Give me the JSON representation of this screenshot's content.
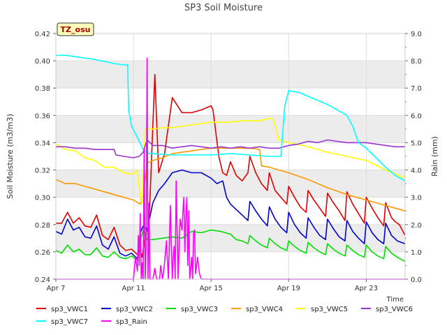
{
  "chart_data": {
    "type": "line",
    "title": "SP3 Soil Moisture",
    "xlabel": "Time",
    "ylabel": "Soil Moisture (m3/m3)",
    "y2label": "Rain (mm)",
    "station_badge": "TZ_osu",
    "xlim": [
      0,
      18
    ],
    "ylim": [
      0.24,
      0.42
    ],
    "y2lim": [
      0.0,
      9.0
    ],
    "x_ticks": [
      {
        "v": 0,
        "label": "Apr 7"
      },
      {
        "v": 4,
        "label": "Apr 11"
      },
      {
        "v": 8,
        "label": "Apr 15"
      },
      {
        "v": 12,
        "label": "Apr 19"
      },
      {
        "v": 16,
        "label": "Apr 23"
      }
    ],
    "y_ticks": [
      {
        "v": 0.24,
        "label": "0.24"
      },
      {
        "v": 0.26,
        "label": "0.26"
      },
      {
        "v": 0.28,
        "label": "0.28"
      },
      {
        "v": 0.3,
        "label": "0.30"
      },
      {
        "v": 0.32,
        "label": "0.32"
      },
      {
        "v": 0.34,
        "label": "0.34"
      },
      {
        "v": 0.36,
        "label": "0.36"
      },
      {
        "v": 0.38,
        "label": "0.38"
      },
      {
        "v": 0.4,
        "label": "0.40"
      },
      {
        "v": 0.42,
        "label": "0.42"
      }
    ],
    "y2_ticks": [
      {
        "v": 0.0,
        "label": "0.0"
      },
      {
        "v": 1.0,
        "label": "1.0"
      },
      {
        "v": 2.0,
        "label": "2.0"
      },
      {
        "v": 3.0,
        "label": "3.0"
      },
      {
        "v": 4.0,
        "label": "4.0"
      },
      {
        "v": 5.0,
        "label": "5.0"
      },
      {
        "v": 6.0,
        "label": "6.0"
      },
      {
        "v": 7.0,
        "label": "7.0"
      },
      {
        "v": 8.0,
        "label": "8.0"
      },
      {
        "v": 9.0,
        "label": "9.0"
      }
    ],
    "grid": true,
    "band_fill": "#ececec",
    "legend_position": "bottom",
    "series": [
      {
        "name": "sp3_VWC1",
        "color": "#dd0000",
        "axis": "left",
        "x": [
          0.0,
          0.3,
          0.6,
          0.9,
          1.2,
          1.5,
          1.8,
          2.1,
          2.4,
          2.7,
          3.0,
          3.3,
          3.6,
          3.9,
          4.2,
          4.35,
          4.45,
          4.6,
          4.8,
          5.1,
          5.3,
          5.6,
          6.0,
          6.5,
          7.0,
          7.5,
          8.0,
          8.1,
          8.4,
          8.6,
          8.8,
          9.0,
          9.3,
          9.6,
          9.9,
          10.0,
          10.3,
          10.6,
          10.9,
          11.0,
          11.3,
          11.6,
          11.9,
          12.0,
          12.3,
          12.6,
          12.9,
          13.0,
          13.3,
          13.6,
          13.9,
          14.0,
          14.3,
          14.6,
          14.9,
          15.0,
          15.3,
          15.6,
          15.9,
          16.0,
          16.3,
          16.6,
          16.9,
          17.0,
          17.3,
          17.5,
          17.7,
          18.0
        ],
        "y": [
          0.281,
          0.281,
          0.289,
          0.281,
          0.285,
          0.279,
          0.278,
          0.287,
          0.272,
          0.269,
          0.278,
          0.265,
          0.261,
          0.262,
          0.258,
          0.261,
          0.256,
          0.272,
          0.28,
          0.39,
          0.318,
          0.332,
          0.373,
          0.362,
          0.362,
          0.364,
          0.367,
          0.364,
          0.33,
          0.318,
          0.316,
          0.326,
          0.316,
          0.312,
          0.318,
          0.33,
          0.318,
          0.31,
          0.305,
          0.318,
          0.305,
          0.3,
          0.295,
          0.308,
          0.3,
          0.293,
          0.289,
          0.305,
          0.298,
          0.292,
          0.286,
          0.303,
          0.296,
          0.29,
          0.283,
          0.304,
          0.295,
          0.288,
          0.281,
          0.3,
          0.292,
          0.285,
          0.279,
          0.296,
          0.285,
          0.282,
          0.28,
          0.272
        ]
      },
      {
        "name": "sp3_VWC2",
        "color": "#0000cc",
        "axis": "left",
        "x": [
          0.0,
          0.3,
          0.6,
          0.9,
          1.2,
          1.5,
          1.8,
          2.1,
          2.4,
          2.7,
          3.0,
          3.3,
          3.6,
          3.9,
          4.2,
          4.35,
          4.5,
          4.7,
          5.0,
          5.3,
          5.6,
          6.0,
          6.5,
          7.0,
          7.5,
          8.0,
          8.3,
          8.6,
          8.8,
          9.0,
          9.3,
          9.6,
          9.9,
          10.0,
          10.3,
          10.6,
          10.9,
          11.0,
          11.3,
          11.6,
          11.9,
          12.0,
          12.3,
          12.6,
          12.9,
          13.0,
          13.3,
          13.6,
          13.9,
          14.0,
          14.3,
          14.6,
          14.9,
          15.0,
          15.3,
          15.6,
          15.9,
          16.0,
          16.3,
          16.6,
          16.9,
          17.0,
          17.3,
          17.6,
          18.0
        ],
        "y": [
          0.275,
          0.273,
          0.284,
          0.276,
          0.278,
          0.271,
          0.27,
          0.279,
          0.265,
          0.262,
          0.271,
          0.259,
          0.257,
          0.259,
          0.255,
          0.274,
          0.279,
          0.276,
          0.296,
          0.305,
          0.31,
          0.318,
          0.32,
          0.318,
          0.318,
          0.314,
          0.31,
          0.312,
          0.3,
          0.295,
          0.291,
          0.287,
          0.283,
          0.297,
          0.29,
          0.284,
          0.279,
          0.293,
          0.284,
          0.278,
          0.274,
          0.289,
          0.28,
          0.274,
          0.27,
          0.285,
          0.278,
          0.272,
          0.269,
          0.284,
          0.277,
          0.271,
          0.268,
          0.283,
          0.275,
          0.27,
          0.266,
          0.282,
          0.274,
          0.269,
          0.266,
          0.281,
          0.272,
          0.268,
          0.266
        ]
      },
      {
        "name": "sp3_VWC3",
        "color": "#00dd00",
        "axis": "left",
        "x": [
          0.0,
          0.3,
          0.6,
          0.9,
          1.2,
          1.5,
          1.8,
          2.1,
          2.4,
          2.7,
          3.0,
          3.3,
          3.6,
          3.9,
          4.2,
          4.35,
          4.5,
          4.7,
          5.0,
          5.5,
          6.0,
          6.5,
          7.0,
          7.5,
          8.0,
          8.5,
          9.0,
          9.3,
          9.6,
          9.9,
          10.0,
          10.3,
          10.6,
          10.9,
          11.0,
          11.3,
          11.6,
          11.9,
          12.0,
          12.3,
          12.6,
          12.9,
          13.0,
          13.3,
          13.6,
          13.9,
          14.0,
          14.3,
          14.6,
          14.9,
          15.0,
          15.3,
          15.6,
          15.9,
          16.0,
          16.3,
          16.6,
          16.9,
          17.0,
          17.3,
          17.6,
          18.0
        ],
        "y": [
          0.261,
          0.259,
          0.265,
          0.26,
          0.262,
          0.258,
          0.258,
          0.263,
          0.257,
          0.256,
          0.26,
          0.256,
          0.255,
          0.257,
          0.254,
          0.268,
          0.276,
          0.269,
          0.269,
          0.27,
          0.271,
          0.27,
          0.275,
          0.274,
          0.276,
          0.275,
          0.273,
          0.269,
          0.268,
          0.266,
          0.272,
          0.268,
          0.265,
          0.263,
          0.27,
          0.266,
          0.263,
          0.261,
          0.268,
          0.264,
          0.261,
          0.259,
          0.267,
          0.263,
          0.26,
          0.258,
          0.266,
          0.262,
          0.259,
          0.257,
          0.265,
          0.261,
          0.258,
          0.256,
          0.265,
          0.26,
          0.257,
          0.255,
          0.264,
          0.259,
          0.256,
          0.253
        ]
      },
      {
        "name": "sp3_VWC4",
        "color": "#ff9900",
        "axis": "left",
        "x": [
          0.0,
          0.5,
          1.0,
          1.5,
          2.0,
          2.5,
          3.0,
          3.5,
          4.0,
          4.35,
          4.5,
          4.7,
          5.0,
          5.5,
          6.0,
          6.5,
          7.0,
          7.5,
          8.0,
          8.5,
          9.0,
          10.0,
          10.5,
          10.6,
          11.0,
          12.0,
          13.0,
          14.0,
          15.0,
          16.0,
          17.0,
          17.5,
          18.0
        ],
        "y": [
          0.313,
          0.31,
          0.31,
          0.308,
          0.306,
          0.304,
          0.302,
          0.3,
          0.298,
          0.295,
          0.301,
          0.325,
          0.327,
          0.329,
          0.332,
          0.333,
          0.334,
          0.335,
          0.336,
          0.336,
          0.336,
          0.336,
          0.335,
          0.323,
          0.322,
          0.318,
          0.313,
          0.307,
          0.302,
          0.298,
          0.294,
          0.292,
          0.29
        ]
      },
      {
        "name": "sp3_VWC5",
        "color": "#ffff00",
        "axis": "left",
        "x": [
          0.0,
          0.5,
          1.0,
          1.5,
          2.0,
          2.5,
          3.0,
          3.5,
          4.0,
          4.2,
          4.35,
          4.45,
          4.6,
          4.7,
          5.0,
          5.5,
          6.0,
          7.0,
          8.0,
          8.5,
          9.0,
          9.5,
          10.0,
          10.5,
          11.0,
          11.2,
          11.5,
          12.0,
          13.0,
          14.0,
          15.0,
          16.0,
          17.0,
          18.0
        ],
        "y": [
          0.339,
          0.335,
          0.334,
          0.329,
          0.327,
          0.322,
          0.322,
          0.318,
          0.317,
          0.32,
          0.3,
          0.295,
          0.35,
          0.35,
          0.35,
          0.351,
          0.351,
          0.353,
          0.355,
          0.355,
          0.355,
          0.356,
          0.356,
          0.356,
          0.358,
          0.357,
          0.342,
          0.34,
          0.337,
          0.333,
          0.33,
          0.327,
          0.32,
          0.314
        ]
      },
      {
        "name": "sp3_VWC6",
        "color": "#9933cc",
        "axis": "left",
        "x": [
          0.0,
          0.5,
          1.0,
          1.5,
          2.0,
          2.5,
          3.0,
          3.1,
          3.5,
          4.0,
          4.3,
          4.5,
          4.7,
          5.0,
          5.5,
          6.0,
          6.5,
          7.0,
          7.5,
          8.0,
          8.5,
          9.0,
          9.5,
          10.0,
          10.5,
          11.0,
          11.5,
          12.0,
          12.5,
          13.0,
          13.5,
          14.0,
          14.5,
          15.0,
          15.5,
          16.0,
          16.5,
          17.0,
          17.5,
          18.0
        ],
        "y": [
          0.337,
          0.337,
          0.336,
          0.336,
          0.335,
          0.335,
          0.335,
          0.331,
          0.33,
          0.329,
          0.33,
          0.333,
          0.342,
          0.338,
          0.338,
          0.336,
          0.337,
          0.338,
          0.337,
          0.336,
          0.337,
          0.336,
          0.337,
          0.336,
          0.337,
          0.336,
          0.336,
          0.338,
          0.339,
          0.341,
          0.34,
          0.342,
          0.341,
          0.34,
          0.34,
          0.34,
          0.339,
          0.338,
          0.337,
          0.337
        ]
      },
      {
        "name": "sp3_VWC7",
        "color": "#00ffff",
        "axis": "left",
        "x": [
          0.0,
          0.5,
          1.0,
          2.0,
          3.0,
          3.5,
          3.7,
          3.75,
          3.9,
          4.2,
          4.5,
          4.8,
          5.0,
          6.0,
          7.0,
          8.0,
          9.0,
          10.0,
          11.0,
          11.5,
          11.6,
          11.8,
          12.0,
          12.5,
          13.0,
          14.0,
          15.0,
          15.3,
          15.6,
          16.0,
          16.5,
          17.0,
          17.5,
          18.0
        ],
        "y": [
          0.404,
          0.404,
          0.403,
          0.401,
          0.398,
          0.397,
          0.397,
          0.364,
          0.352,
          0.344,
          0.335,
          0.332,
          0.332,
          0.331,
          0.331,
          0.331,
          0.332,
          0.331,
          0.33,
          0.33,
          0.33,
          0.367,
          0.378,
          0.377,
          0.374,
          0.368,
          0.36,
          0.352,
          0.34,
          0.336,
          0.329,
          0.322,
          0.316,
          0.312
        ]
      },
      {
        "name": "sp3_Rain",
        "color": "#ff00ff",
        "axis": "right",
        "x": [
          0.0,
          4.0,
          4.1,
          4.2,
          4.25,
          4.3,
          4.35,
          4.4,
          4.45,
          4.5,
          4.55,
          4.6,
          4.65,
          4.7,
          4.75,
          4.8,
          4.85,
          5.0,
          5.1,
          5.2,
          5.3,
          5.35,
          5.4,
          5.5,
          5.6,
          5.7,
          5.8,
          5.9,
          6.0,
          6.05,
          6.1,
          6.15,
          6.2,
          6.3,
          6.4,
          6.5,
          6.55,
          6.6,
          6.65,
          6.7,
          6.75,
          6.8,
          6.85,
          6.9,
          7.0,
          7.05,
          7.1,
          7.15,
          7.2,
          7.3,
          7.4,
          7.5,
          18.0
        ],
        "y": [
          0.0,
          0.0,
          0.8,
          0.3,
          1.6,
          0.5,
          2.4,
          0.0,
          0.6,
          0.0,
          4.8,
          0.0,
          1.2,
          8.1,
          0.0,
          2.8,
          0.0,
          0.0,
          0.4,
          0.0,
          0.0,
          0.0,
          0.5,
          0.0,
          0.6,
          1.4,
          0.0,
          2.7,
          0.0,
          0.8,
          1.2,
          0.0,
          3.6,
          0.0,
          2.2,
          1.8,
          2.5,
          3.0,
          1.0,
          2.3,
          3.0,
          0.5,
          2.5,
          0.0,
          0.8,
          0.0,
          1.7,
          1.8,
          0.2,
          0.8,
          0.2,
          0.0,
          0.0
        ]
      }
    ]
  }
}
